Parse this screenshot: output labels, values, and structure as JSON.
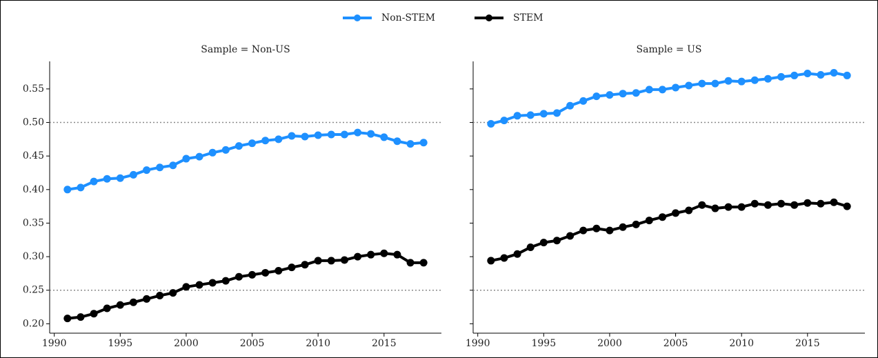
{
  "chart_data": [
    {
      "type": "line",
      "subtitle": "Sample = Non-US",
      "x": [
        1991,
        1992,
        1993,
        1994,
        1995,
        1996,
        1997,
        1998,
        1999,
        2000,
        2001,
        2002,
        2003,
        2004,
        2005,
        2006,
        2007,
        2008,
        2009,
        2010,
        2011,
        2012,
        2013,
        2014,
        2015,
        2016,
        2017,
        2018
      ],
      "series": [
        {
          "name": "Non-STEM",
          "color": "#1e90ff",
          "values": [
            0.4,
            0.403,
            0.412,
            0.416,
            0.417,
            0.422,
            0.429,
            0.433,
            0.436,
            0.446,
            0.449,
            0.455,
            0.459,
            0.465,
            0.469,
            0.473,
            0.475,
            0.48,
            0.479,
            0.481,
            0.482,
            0.482,
            0.485,
            0.483,
            0.478,
            0.472,
            0.468,
            0.47
          ]
        },
        {
          "name": "STEM",
          "color": "#000000",
          "values": [
            0.208,
            0.21,
            0.215,
            0.223,
            0.228,
            0.232,
            0.237,
            0.242,
            0.246,
            0.255,
            0.258,
            0.261,
            0.264,
            0.27,
            0.273,
            0.276,
            0.279,
            0.284,
            0.288,
            0.294,
            0.294,
            0.295,
            0.3,
            0.303,
            0.305,
            0.303,
            0.291,
            0.291
          ]
        }
      ],
      "xlim": [
        1989.65,
        2019.35
      ],
      "xticks": [
        1990,
        1995,
        2000,
        2005,
        2010,
        2015
      ],
      "ylim": [
        0.186,
        0.591
      ],
      "yticks": [
        {
          "value": 0.2,
          "label": "0.20"
        },
        0.25,
        {
          "value": 0.3,
          "label": "0.30"
        },
        0.35,
        {
          "value": 0.4,
          "label": "0.40"
        },
        0.45,
        {
          "value": 0.5,
          "label": "0.50"
        },
        0.55
      ],
      "hlines": [
        0.25,
        0.5
      ]
    },
    {
      "type": "line",
      "subtitle": "Sample = US",
      "x": [
        1991,
        1992,
        1993,
        1994,
        1995,
        1996,
        1997,
        1998,
        1999,
        2000,
        2001,
        2002,
        2003,
        2004,
        2005,
        2006,
        2007,
        2008,
        2009,
        2010,
        2011,
        2012,
        2013,
        2014,
        2015,
        2016,
        2017,
        2018
      ],
      "series": [
        {
          "name": "Non-STEM",
          "color": "#1e90ff",
          "values": [
            0.498,
            0.503,
            0.51,
            0.511,
            0.513,
            0.514,
            0.525,
            0.532,
            0.539,
            0.541,
            0.543,
            0.544,
            0.549,
            0.549,
            0.552,
            0.555,
            0.558,
            0.558,
            0.562,
            0.561,
            0.563,
            0.565,
            0.568,
            0.57,
            0.573,
            0.571,
            0.574,
            0.57
          ]
        },
        {
          "name": "STEM",
          "color": "#000000",
          "values": [
            0.294,
            0.298,
            0.304,
            0.314,
            0.321,
            0.324,
            0.331,
            0.339,
            0.342,
            0.339,
            0.344,
            0.348,
            0.354,
            0.359,
            0.365,
            0.369,
            0.377,
            0.372,
            0.374,
            0.374,
            0.379,
            0.377,
            0.379,
            0.377,
            0.38,
            0.379,
            0.381,
            0.375
          ]
        }
      ],
      "xlim": [
        1989.65,
        2019.35
      ],
      "xticks": [
        1990,
        1995,
        2000,
        2005,
        2010,
        2015
      ],
      "ylim": [
        0.186,
        0.591
      ],
      "yticks": [
        0.2,
        0.25,
        0.3,
        0.35,
        0.4,
        0.45,
        0.5,
        0.55
      ],
      "hlines": [
        0.25,
        0.5
      ]
    }
  ]
}
